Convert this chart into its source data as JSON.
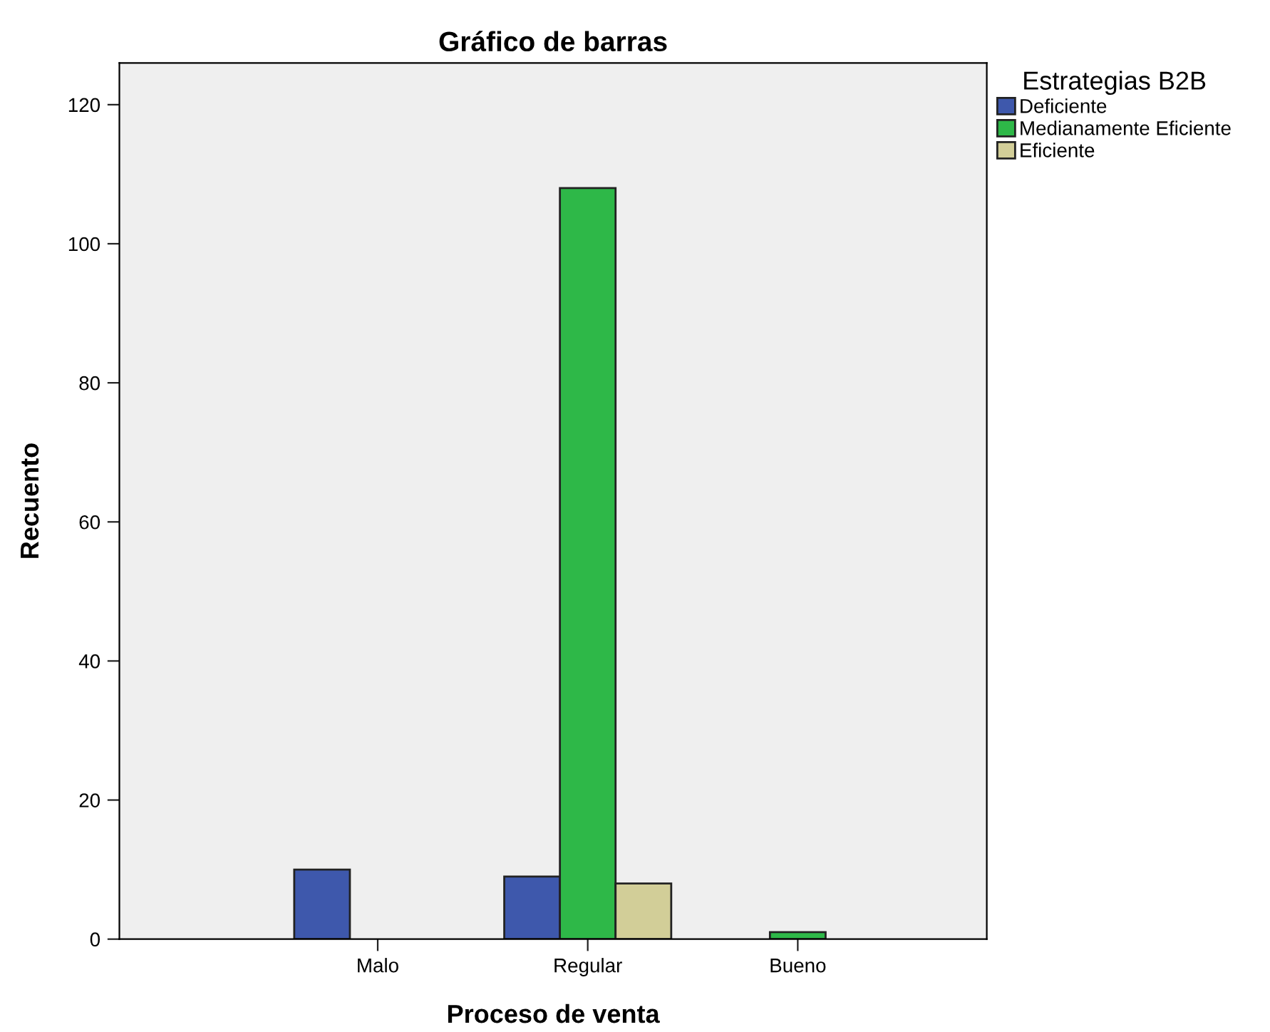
{
  "chart_data": {
    "type": "bar",
    "title": "Gráfico de barras",
    "xlabel": "Proceso de venta",
    "ylabel": "Recuento",
    "legend_title": "Estrategias B2B",
    "categories": [
      "Malo",
      "Regular",
      "Bueno"
    ],
    "series": [
      {
        "name": "Deficiente",
        "color": "#3e58ac",
        "values": [
          10,
          9,
          null
        ]
      },
      {
        "name": "Medianamente Eficiente",
        "color": "#2eb848",
        "values": [
          null,
          108,
          1
        ]
      },
      {
        "name": "Eficiente",
        "color": "#d2ce98",
        "values": [
          null,
          8,
          null
        ]
      }
    ],
    "ylim": [
      0,
      126
    ],
    "yticks": [
      0,
      20,
      40,
      60,
      80,
      100,
      120
    ],
    "grid": false,
    "legend": "top right"
  }
}
